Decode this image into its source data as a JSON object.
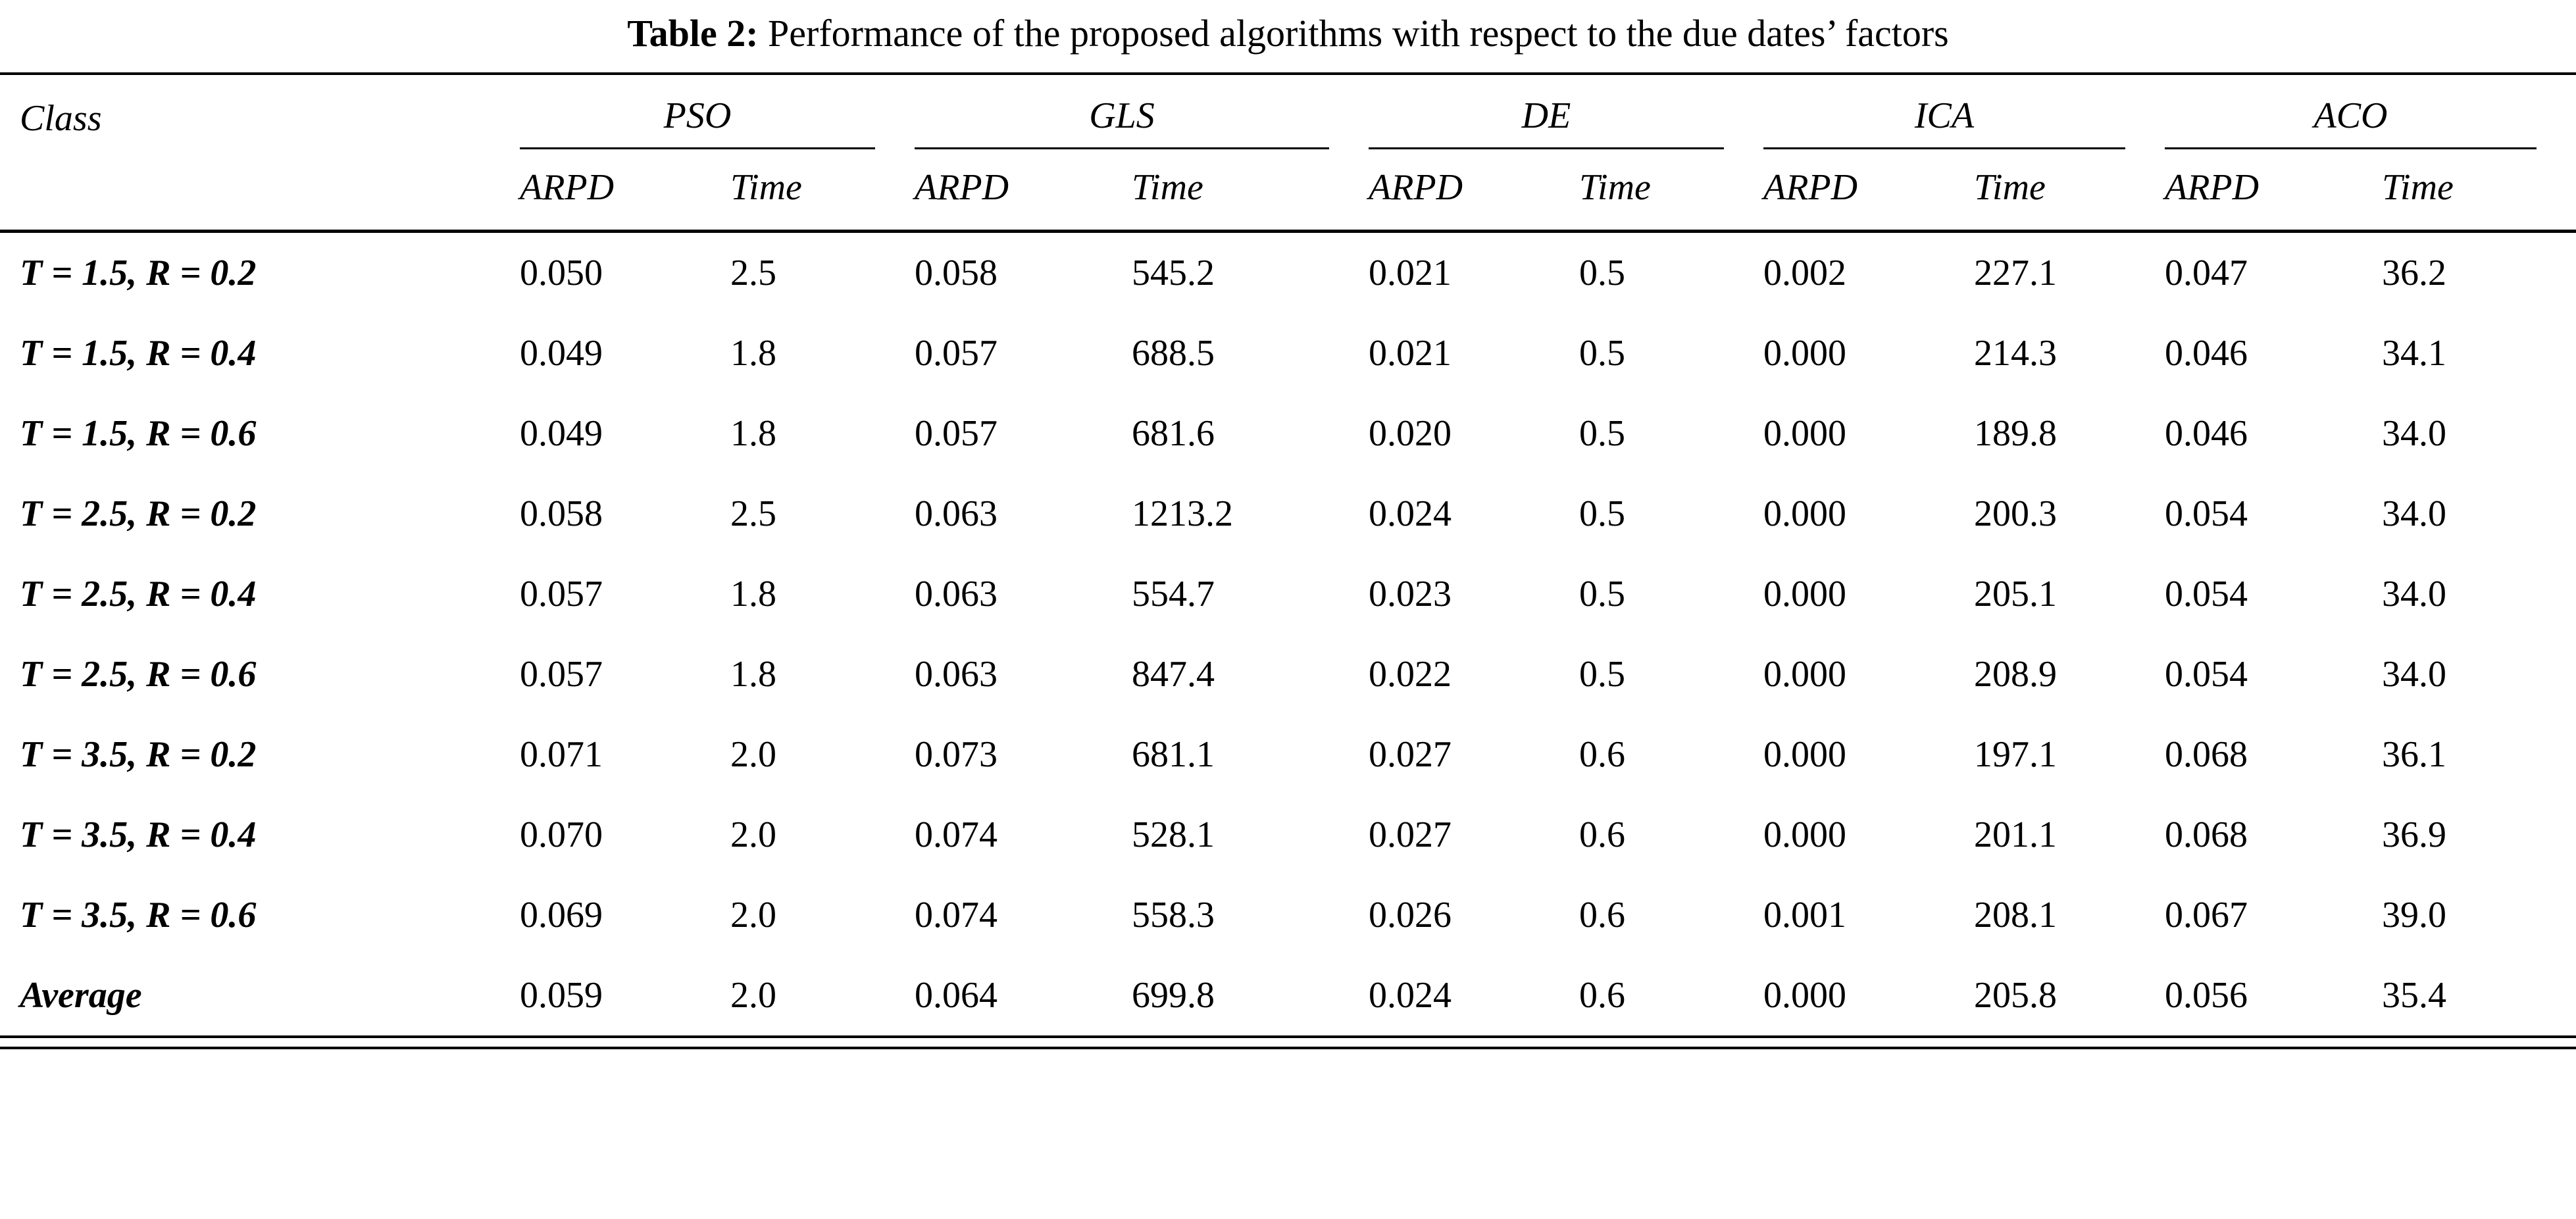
{
  "title": {
    "label": "Table 2:",
    "text": "Performance of the proposed algorithms with respect to the due dates’ factors"
  },
  "table": {
    "class_header": "Class",
    "groups": [
      "PSO",
      "GLS",
      "DE",
      "ICA",
      "ACO"
    ],
    "subheaders": [
      "ARPD",
      "Time"
    ],
    "rows": [
      {
        "class": "T = 1.5, R = 0.2",
        "values": [
          "0.050",
          "2.5",
          "0.058",
          "545.2",
          "0.021",
          "0.5",
          "0.002",
          "227.1",
          "0.047",
          "36.2"
        ]
      },
      {
        "class": "T = 1.5, R = 0.4",
        "values": [
          "0.049",
          "1.8",
          "0.057",
          "688.5",
          "0.021",
          "0.5",
          "0.000",
          "214.3",
          "0.046",
          "34.1"
        ]
      },
      {
        "class": "T = 1.5, R = 0.6",
        "values": [
          "0.049",
          "1.8",
          "0.057",
          "681.6",
          "0.020",
          "0.5",
          "0.000",
          "189.8",
          "0.046",
          "34.0"
        ]
      },
      {
        "class": "T = 2.5, R = 0.2",
        "values": [
          "0.058",
          "2.5",
          "0.063",
          "1213.2",
          "0.024",
          "0.5",
          "0.000",
          "200.3",
          "0.054",
          "34.0"
        ]
      },
      {
        "class": "T = 2.5, R = 0.4",
        "values": [
          "0.057",
          "1.8",
          "0.063",
          "554.7",
          "0.023",
          "0.5",
          "0.000",
          "205.1",
          "0.054",
          "34.0"
        ]
      },
      {
        "class": "T = 2.5, R = 0.6",
        "values": [
          "0.057",
          "1.8",
          "0.063",
          "847.4",
          "0.022",
          "0.5",
          "0.000",
          "208.9",
          "0.054",
          "34.0"
        ]
      },
      {
        "class": "T = 3.5, R = 0.2",
        "values": [
          "0.071",
          "2.0",
          "0.073",
          "681.1",
          "0.027",
          "0.6",
          "0.000",
          "197.1",
          "0.068",
          "36.1"
        ]
      },
      {
        "class": "T = 3.5, R = 0.4",
        "values": [
          "0.070",
          "2.0",
          "0.074",
          "528.1",
          "0.027",
          "0.6",
          "0.000",
          "201.1",
          "0.068",
          "36.9"
        ]
      },
      {
        "class": "T = 3.5, R = 0.6",
        "values": [
          "0.069",
          "2.0",
          "0.074",
          "558.3",
          "0.026",
          "0.6",
          "0.001",
          "208.1",
          "0.067",
          "39.0"
        ]
      },
      {
        "class": "Average",
        "values": [
          "0.059",
          "2.0",
          "0.064",
          "699.8",
          "0.024",
          "0.6",
          "0.000",
          "205.8",
          "0.056",
          "35.4"
        ]
      }
    ]
  }
}
